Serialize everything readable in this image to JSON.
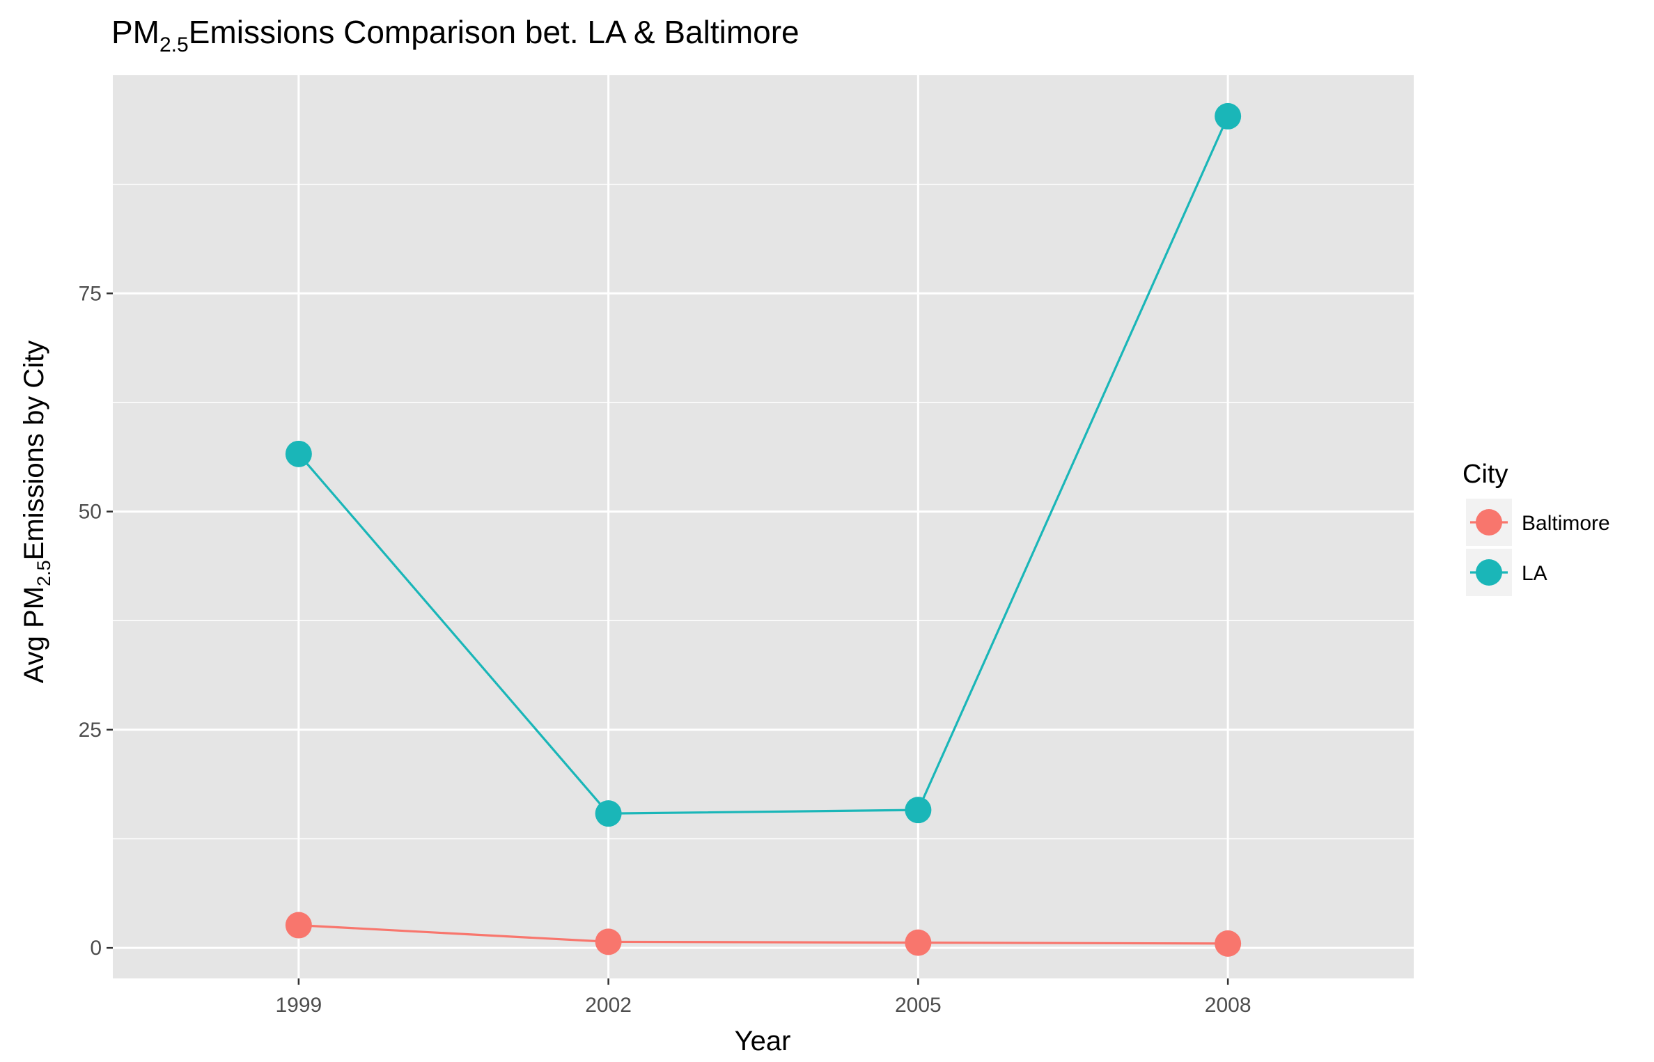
{
  "chart_data": {
    "type": "line",
    "title_parts": {
      "pre": "PM",
      "sub": "2.5",
      "post": "Emissions Comparison bet. LA & Baltimore"
    },
    "xlabel": "Year",
    "ylabel_parts": {
      "pre": "Avg PM",
      "sub": "2.5",
      "post": "Emissions by City"
    },
    "x": [
      1999,
      2002,
      2005,
      2008
    ],
    "x_tick_labels": [
      "1999",
      "2002",
      "2005",
      "2008"
    ],
    "xlim": [
      1997.2,
      2009.8
    ],
    "ylim": [
      -3.5,
      100
    ],
    "y_ticks": [
      0,
      25,
      50,
      75
    ],
    "y_tick_labels": [
      "0",
      "25",
      "50",
      "75"
    ],
    "y_minor_ticks": [
      12.5,
      37.5,
      62.5,
      87.5
    ],
    "grid": true,
    "panel_color": "#e5e5e5",
    "legend": {
      "title": "City",
      "position": "right"
    },
    "series": [
      {
        "name": "Baltimore",
        "color": "#f8766d",
        "values": [
          2.6,
          0.7,
          0.6,
          0.5
        ]
      },
      {
        "name": "LA",
        "color": "#1ab6b8",
        "values": [
          56.6,
          15.4,
          15.8,
          95.3
        ]
      }
    ]
  }
}
